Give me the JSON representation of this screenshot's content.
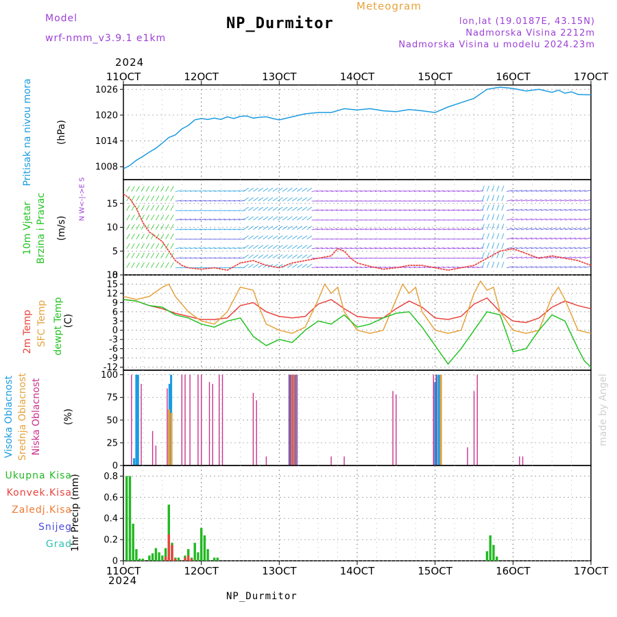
{
  "header": {
    "model_label": "Model",
    "model_name": "wrf-nmm_v3.9.1  e1km",
    "title": "NP_Durmitor",
    "product": "Meteogram",
    "lonlat": "lon,lat (19.0187E, 43.15N)",
    "elevation": "Nadmorska Visina 2212m",
    "model_elevation": "Nadmorska Visina u modelu 2024.23m",
    "year_top": "2024",
    "year_bottom": "2024",
    "footer": "NP_Durmitor",
    "credit": "made by Angel"
  },
  "colors": {
    "pressure": "#1a9be0",
    "temp2m": "#e8413b",
    "sfc": "#e6a23c",
    "dewpt": "#22c222",
    "high_cloud": "#1a9be0",
    "mid_cloud": "#e6a23c",
    "low_cloud": "#c8318a",
    "precip_total": "#22b822",
    "precip_conv": "#e8413b",
    "wind_speed_line": "#e8413b",
    "header_purple": "#9b3fd6",
    "header_orange": "#e6a23c"
  },
  "panel_labels": {
    "pressure": [
      "Pritisak na nivou mora",
      "(hPa)"
    ],
    "wind": [
      "10m Vjetar",
      "Brzina i Pravac",
      "(m/s)"
    ],
    "wind_compass": "N  W<-|->E  S",
    "temp": [
      "2m Temp",
      "SFC Temp",
      "dewpt Temp",
      "(C)"
    ],
    "cloud": [
      "Visoka Oblacnost",
      "Srednja Oblacnost",
      "Niska Oblacnost",
      "(%)"
    ],
    "precip_legend": [
      "Ukupna Kisa",
      "Konvek.Kisa",
      "Zaledj.Kisa",
      "Snijeg",
      "Grad"
    ],
    "precip_unit": "1hr Precip (mm)"
  },
  "chart_data": {
    "type": "line",
    "x_ticks": [
      "11OCT",
      "12OCT",
      "13OCT",
      "14OCT",
      "15OCT",
      "16OCT",
      "17OCT"
    ],
    "xlim": [
      0,
      144
    ],
    "x_unit": "hours from 2024-10-11 00 UTC",
    "panels": [
      {
        "name": "pressure",
        "type": "line",
        "ylim": [
          1005,
          1027
        ],
        "yticks": [
          1008,
          1014,
          1020,
          1026
        ],
        "series": [
          {
            "x": [
              0,
              2,
              4,
              6,
              8,
              10,
              12,
              14,
              16,
              18,
              20,
              22,
              24,
              26,
              28,
              30,
              32,
              34,
              36,
              38,
              40,
              42,
              44,
              46,
              48,
              52,
              56,
              60,
              64,
              68,
              72,
              76,
              80,
              84,
              88,
              92,
              96,
              100,
              104,
              108,
              112,
              116,
              120,
              124,
              128,
              132,
              134,
              136,
              138,
              140,
              144
            ],
            "values": [
              1007.5,
              1008.3,
              1009.5,
              1010.4,
              1011.4,
              1012.3,
              1013.5,
              1014.8,
              1015.4,
              1016.8,
              1017.6,
              1018.9,
              1019.2,
              1019.0,
              1019.3,
              1019.0,
              1019.6,
              1019.2,
              1019.7,
              1019.8,
              1019.3,
              1019.5,
              1019.6,
              1019.2,
              1018.9,
              1019.6,
              1020.3,
              1020.6,
              1020.6,
              1021.5,
              1021.2,
              1021.5,
              1021.0,
              1020.8,
              1021.3,
              1021.0,
              1020.6,
              1021.9,
              1022.9,
              1023.9,
              1026.0,
              1026.5,
              1026.2,
              1025.6,
              1026.0,
              1025.3,
              1025.8,
              1025.1,
              1025.4,
              1024.8,
              1024.7
            ]
          }
        ]
      },
      {
        "name": "wind",
        "type": "line",
        "ylim": [
          0,
          20
        ],
        "yticks": [
          0,
          5,
          10,
          15
        ],
        "series": [
          {
            "x": [
              0,
              2,
              4,
              6,
              8,
              10,
              12,
              14,
              16,
              18,
              20,
              24,
              28,
              32,
              36,
              40,
              44,
              48,
              52,
              56,
              60,
              64,
              66,
              68,
              70,
              72,
              76,
              80,
              84,
              88,
              92,
              96,
              100,
              104,
              108,
              112,
              116,
              120,
              124,
              128,
              132,
              136,
              140,
              144
            ],
            "values": [
              17,
              16,
              14,
              11,
              9,
              8,
              7,
              5,
              3,
              2,
              1.5,
              1.2,
              1.5,
              1.0,
              2.5,
              3.0,
              2.0,
              1.5,
              2.5,
              3.0,
              3.5,
              4.0,
              5.5,
              5.0,
              3.5,
              2.5,
              1.8,
              1.2,
              1.5,
              2.0,
              2.0,
              1.5,
              1.0,
              1.5,
              2.0,
              3.5,
              5.0,
              5.5,
              4.5,
              3.5,
              4.0,
              3.5,
              3.0,
              2.0
            ]
          }
        ]
      },
      {
        "name": "temperature",
        "type": "line",
        "ylim": [
          -13,
          18
        ],
        "yticks": [
          -12,
          -9,
          -6,
          -3,
          0,
          3,
          6,
          9,
          12,
          15,
          18
        ],
        "series": [
          {
            "name": "2m Temp",
            "x": [
              0,
              4,
              8,
              12,
              16,
              20,
              24,
              28,
              32,
              36,
              40,
              44,
              48,
              52,
              56,
              60,
              64,
              68,
              72,
              76,
              80,
              84,
              88,
              92,
              96,
              100,
              104,
              108,
              112,
              116,
              120,
              124,
              128,
              132,
              136,
              140,
              144
            ],
            "values": [
              10,
              9.5,
              8,
              7,
              5.5,
              4.5,
              3.5,
              3.5,
              4,
              8,
              9,
              6,
              4.5,
              4,
              4.5,
              8.5,
              10,
              7,
              4.5,
              4,
              4,
              7,
              9.5,
              7.5,
              4,
              3.5,
              4.5,
              8.5,
              10.5,
              6,
              3,
              2.5,
              4,
              7.5,
              9.5,
              8,
              7
            ]
          },
          {
            "name": "SFC Temp",
            "x": [
              0,
              4,
              8,
              12,
              14,
              16,
              20,
              24,
              28,
              32,
              36,
              40,
              42,
              44,
              48,
              52,
              56,
              60,
              62,
              64,
              66,
              68,
              72,
              76,
              80,
              84,
              86,
              88,
              90,
              92,
              96,
              100,
              104,
              108,
              110,
              112,
              114,
              116,
              120,
              124,
              128,
              132,
              134,
              136,
              140,
              144
            ],
            "values": [
              11,
              10,
              11,
              14,
              15,
              11,
              6,
              3,
              2,
              6,
              14,
              13,
              7,
              2,
              0,
              -1,
              1,
              10,
              15,
              12,
              14,
              6,
              0,
              -1,
              0,
              10,
              15,
              12,
              14,
              6,
              0,
              -1,
              0,
              12,
              16,
              13,
              14,
              6,
              0,
              -1,
              0,
              11,
              14,
              10,
              0,
              -1
            ]
          },
          {
            "name": "dewpt Temp",
            "x": [
              0,
              4,
              8,
              12,
              16,
              20,
              24,
              28,
              32,
              36,
              40,
              44,
              48,
              52,
              56,
              60,
              64,
              68,
              72,
              76,
              80,
              84,
              88,
              92,
              96,
              100,
              104,
              108,
              112,
              116,
              120,
              124,
              128,
              132,
              136,
              140,
              142,
              144
            ],
            "values": [
              10,
              9.5,
              8,
              7.5,
              5,
              4,
              2,
              1,
              3,
              4,
              -2,
              -5,
              -3,
              -4,
              0,
              3,
              2,
              5,
              1,
              2,
              4,
              5.5,
              6,
              1,
              -5,
              -11,
              -6,
              0,
              6,
              5,
              -7,
              -6,
              0,
              5,
              3,
              -6,
              -10,
              -12
            ]
          }
        ]
      },
      {
        "name": "cloud",
        "type": "bar",
        "ylim": [
          0,
          105
        ],
        "yticks": [
          0,
          25,
          50,
          75,
          100
        ],
        "series": [
          {
            "name": "Visoka Oblacnost",
            "x": [
              3.3,
              4.0,
              4.5,
              14.2,
              14.7,
              51.3,
              51.9,
              52.4,
              53.0,
              96.0,
              96.5,
              97.2
            ],
            "values": [
              8,
              100,
              100,
              90,
              100,
              100,
              100,
              100,
              100,
              92,
              100,
              100
            ]
          },
          {
            "name": "Srednja Oblacnost",
            "x": [
              14.0,
              14.8,
              52.0,
              52.7,
              97.8
            ],
            "values": [
              62,
              58,
              100,
              100,
              100
            ]
          },
          {
            "name": "Niska Oblacnost",
            "x": [
              2.5,
              5.5,
              9.0,
              10.0,
              13.5,
              18.0,
              19.0,
              20.5,
              23.0,
              24.0,
              26.5,
              27.5,
              29.5,
              30.5,
              40.0,
              41.0,
              44.0,
              51.0,
              51.6,
              52.2,
              52.8,
              53.5,
              64.0,
              68.0,
              83.0,
              84.0,
              95.5,
              96.3,
              106.0,
              108.0,
              109.0,
              122.0,
              123.0
            ],
            "values": [
              100,
              90,
              38,
              22,
              85,
              100,
              100,
              100,
              100,
              100,
              92,
              90,
              100,
              100,
              80,
              72,
              10,
              100,
              100,
              100,
              100,
              100,
              10,
              10,
              82,
              78,
              100,
              100,
              20,
              82,
              100,
              10,
              10
            ]
          }
        ]
      },
      {
        "name": "precipitation",
        "type": "bar",
        "ylim": [
          0,
          0.9
        ],
        "yticks": [
          0,
          0.2,
          0.4,
          0.6,
          0.8
        ],
        "series": [
          {
            "name": "Ukupna Kisa",
            "x": [
              1,
              2,
              3,
              4,
              5,
              6,
              7,
              8,
              9,
              10,
              11,
              12,
              13,
              14,
              15,
              16,
              17,
              18,
              19,
              20,
              21,
              22,
              23,
              24,
              25,
              26,
              27,
              28,
              29,
              112,
              113,
              114,
              115
            ],
            "values": [
              0.8,
              0.8,
              0.35,
              0.11,
              0.02,
              0.02,
              0.0,
              0.05,
              0.07,
              0.12,
              0.08,
              0.05,
              0.12,
              0.53,
              0.17,
              0.03,
              0.03,
              0.0,
              0.05,
              0.11,
              0.03,
              0.17,
              0.08,
              0.31,
              0.24,
              0.11,
              0.0,
              0.03,
              0.03,
              0.09,
              0.24,
              0.15,
              0.04
            ]
          },
          {
            "name": "Konvek.Kisa",
            "x": [
              13,
              14,
              15,
              16,
              19,
              20,
              21
            ],
            "values": [
              0.04,
              0.25,
              0.15,
              0.02,
              0.03,
              0.05,
              0.02
            ]
          }
        ]
      }
    ]
  }
}
